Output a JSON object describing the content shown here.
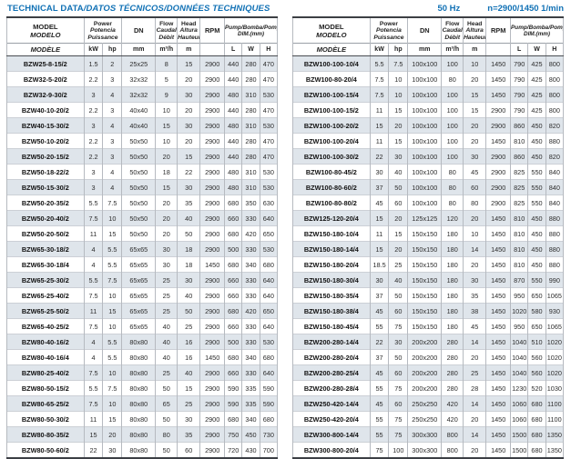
{
  "page": {
    "title_main": "TECHNICAL DATA",
    "title_rest": "/DATOS TÉCNICOS/DONNÉES TECHNIQUES",
    "frequency": "50 Hz",
    "speed": "n=2900/1450 1/min"
  },
  "colors": {
    "accent_blue": "#1171b5",
    "row_shade": "#dfe5eb",
    "border_dark": "#3c3f44",
    "border_light": "#b6bac0"
  },
  "table_header": {
    "model": [
      "MODEL",
      "MODELO",
      "MODÈLE"
    ],
    "power": [
      "Power",
      "Potencia",
      "Puissance"
    ],
    "dn": "DN",
    "flow": [
      "Flow",
      "Caudal",
      "Débit"
    ],
    "head": [
      "Head",
      "Altura",
      "Hauteur"
    ],
    "rpm": "RPM",
    "dim": [
      "Pump/Bomba/Pompe",
      "DIM.(mm)"
    ],
    "units": [
      "kW",
      "hp",
      "mm",
      "m³/h",
      "m",
      "L",
      "W",
      "H"
    ]
  },
  "left_table": {
    "rows": [
      [
        "BZW25-8-15/2",
        "1.5",
        "2",
        "25x25",
        "8",
        "15",
        "2900",
        "440",
        "280",
        "470"
      ],
      [
        "BZW32-5-20/2",
        "2.2",
        "3",
        "32x32",
        "5",
        "20",
        "2900",
        "440",
        "280",
        "470"
      ],
      [
        "BZW32-9-30/2",
        "3",
        "4",
        "32x32",
        "9",
        "30",
        "2900",
        "480",
        "310",
        "530"
      ],
      [
        "BZW40-10-20/2",
        "2.2",
        "3",
        "40x40",
        "10",
        "20",
        "2900",
        "440",
        "280",
        "470"
      ],
      [
        "BZW40-15-30/2",
        "3",
        "4",
        "40x40",
        "15",
        "30",
        "2900",
        "480",
        "310",
        "530"
      ],
      [
        "BZW50-10-20/2",
        "2.2",
        "3",
        "50x50",
        "10",
        "20",
        "2900",
        "440",
        "280",
        "470"
      ],
      [
        "BZW50-20-15/2",
        "2.2",
        "3",
        "50x50",
        "20",
        "15",
        "2900",
        "440",
        "280",
        "470"
      ],
      [
        "BZW50-18-22/2",
        "3",
        "4",
        "50x50",
        "18",
        "22",
        "2900",
        "480",
        "310",
        "530"
      ],
      [
        "BZW50-15-30/2",
        "3",
        "4",
        "50x50",
        "15",
        "30",
        "2900",
        "480",
        "310",
        "530"
      ],
      [
        "BZW50-20-35/2",
        "5.5",
        "7.5",
        "50x50",
        "20",
        "35",
        "2900",
        "680",
        "350",
        "630"
      ],
      [
        "BZW50-20-40/2",
        "7.5",
        "10",
        "50x50",
        "20",
        "40",
        "2900",
        "660",
        "330",
        "640"
      ],
      [
        "BZW50-20-50/2",
        "11",
        "15",
        "50x50",
        "20",
        "50",
        "2900",
        "680",
        "420",
        "650"
      ],
      [
        "BZW65-30-18/2",
        "4",
        "5.5",
        "65x65",
        "30",
        "18",
        "2900",
        "500",
        "330",
        "530"
      ],
      [
        "BZW65-30-18/4",
        "4",
        "5.5",
        "65x65",
        "30",
        "18",
        "1450",
        "680",
        "340",
        "680"
      ],
      [
        "BZW65-25-30/2",
        "5.5",
        "7.5",
        "65x65",
        "25",
        "30",
        "2900",
        "660",
        "330",
        "640"
      ],
      [
        "BZW65-25-40/2",
        "7.5",
        "10",
        "65x65",
        "25",
        "40",
        "2900",
        "660",
        "330",
        "640"
      ],
      [
        "BZW65-25-50/2",
        "11",
        "15",
        "65x65",
        "25",
        "50",
        "2900",
        "680",
        "420",
        "650"
      ],
      [
        "BZW65-40-25/2",
        "7.5",
        "10",
        "65x65",
        "40",
        "25",
        "2900",
        "660",
        "330",
        "640"
      ],
      [
        "BZW80-40-16/2",
        "4",
        "5.5",
        "80x80",
        "40",
        "16",
        "2900",
        "500",
        "330",
        "530"
      ],
      [
        "BZW80-40-16/4",
        "4",
        "5.5",
        "80x80",
        "40",
        "16",
        "1450",
        "680",
        "340",
        "680"
      ],
      [
        "BZW80-25-40/2",
        "7.5",
        "10",
        "80x80",
        "25",
        "40",
        "2900",
        "660",
        "330",
        "640"
      ],
      [
        "BZW80-50-15/2",
        "5.5",
        "7.5",
        "80x80",
        "50",
        "15",
        "2900",
        "590",
        "335",
        "590"
      ],
      [
        "BZW80-65-25/2",
        "7.5",
        "10",
        "80x80",
        "65",
        "25",
        "2900",
        "590",
        "335",
        "590"
      ],
      [
        "BZW80-50-30/2",
        "11",
        "15",
        "80x80",
        "50",
        "30",
        "2900",
        "680",
        "340",
        "680"
      ],
      [
        "BZW80-80-35/2",
        "15",
        "20",
        "80x80",
        "80",
        "35",
        "2900",
        "750",
        "450",
        "730"
      ],
      [
        "BZW80-50-60/2",
        "22",
        "30",
        "80x80",
        "50",
        "60",
        "2900",
        "720",
        "430",
        "700"
      ]
    ]
  },
  "right_table": {
    "rows": [
      [
        "BZW100-100-10/4",
        "5.5",
        "7.5",
        "100x100",
        "100",
        "10",
        "1450",
        "790",
        "425",
        "800"
      ],
      [
        "BZW100-80-20/4",
        "7.5",
        "10",
        "100x100",
        "80",
        "20",
        "1450",
        "790",
        "425",
        "800"
      ],
      [
        "BZW100-100-15/4",
        "7.5",
        "10",
        "100x100",
        "100",
        "15",
        "1450",
        "790",
        "425",
        "800"
      ],
      [
        "BZW100-100-15/2",
        "11",
        "15",
        "100x100",
        "100",
        "15",
        "2900",
        "790",
        "425",
        "800"
      ],
      [
        "BZW100-100-20/2",
        "15",
        "20",
        "100x100",
        "100",
        "20",
        "2900",
        "860",
        "450",
        "820"
      ],
      [
        "BZW100-100-20/4",
        "11",
        "15",
        "100x100",
        "100",
        "20",
        "1450",
        "810",
        "450",
        "880"
      ],
      [
        "BZW100-100-30/2",
        "22",
        "30",
        "100x100",
        "100",
        "30",
        "2900",
        "860",
        "450",
        "820"
      ],
      [
        "BZW100-80-45/2",
        "30",
        "40",
        "100x100",
        "80",
        "45",
        "2900",
        "825",
        "550",
        "840"
      ],
      [
        "BZW100-80-60/2",
        "37",
        "50",
        "100x100",
        "80",
        "60",
        "2900",
        "825",
        "550",
        "840"
      ],
      [
        "BZW100-80-80/2",
        "45",
        "60",
        "100x100",
        "80",
        "80",
        "2900",
        "825",
        "550",
        "840"
      ],
      [
        "BZW125-120-20/4",
        "15",
        "20",
        "125x125",
        "120",
        "20",
        "1450",
        "810",
        "450",
        "880"
      ],
      [
        "BZW150-180-10/4",
        "11",
        "15",
        "150x150",
        "180",
        "10",
        "1450",
        "810",
        "450",
        "880"
      ],
      [
        "BZW150-180-14/4",
        "15",
        "20",
        "150x150",
        "180",
        "14",
        "1450",
        "810",
        "450",
        "880"
      ],
      [
        "BZW150-180-20/4",
        "18.5",
        "25",
        "150x150",
        "180",
        "20",
        "1450",
        "810",
        "450",
        "880"
      ],
      [
        "BZW150-180-30/4",
        "30",
        "40",
        "150x150",
        "180",
        "30",
        "1450",
        "870",
        "550",
        "990"
      ],
      [
        "BZW150-180-35/4",
        "37",
        "50",
        "150x150",
        "180",
        "35",
        "1450",
        "950",
        "650",
        "1065"
      ],
      [
        "BZW150-180-38/4",
        "45",
        "60",
        "150x150",
        "180",
        "38",
        "1450",
        "1020",
        "580",
        "930"
      ],
      [
        "BZW150-180-45/4",
        "55",
        "75",
        "150x150",
        "180",
        "45",
        "1450",
        "950",
        "650",
        "1065"
      ],
      [
        "BZW200-280-14/4",
        "22",
        "30",
        "200x200",
        "280",
        "14",
        "1450",
        "1040",
        "510",
        "1020"
      ],
      [
        "BZW200-280-20/4",
        "37",
        "50",
        "200x200",
        "280",
        "20",
        "1450",
        "1040",
        "560",
        "1020"
      ],
      [
        "BZW200-280-25/4",
        "45",
        "60",
        "200x200",
        "280",
        "25",
        "1450",
        "1040",
        "560",
        "1020"
      ],
      [
        "BZW200-280-28/4",
        "55",
        "75",
        "200x200",
        "280",
        "28",
        "1450",
        "1230",
        "520",
        "1030"
      ],
      [
        "BZW250-420-14/4",
        "45",
        "60",
        "250x250",
        "420",
        "14",
        "1450",
        "1060",
        "680",
        "1100"
      ],
      [
        "BZW250-420-20/4",
        "55",
        "75",
        "250x250",
        "420",
        "20",
        "1450",
        "1060",
        "680",
        "1100"
      ],
      [
        "BZW300-800-14/4",
        "55",
        "75",
        "300x300",
        "800",
        "14",
        "1450",
        "1500",
        "680",
        "1350"
      ],
      [
        "BZW300-800-20/4",
        "75",
        "100",
        "300x300",
        "800",
        "20",
        "1450",
        "1500",
        "680",
        "1350"
      ]
    ]
  }
}
